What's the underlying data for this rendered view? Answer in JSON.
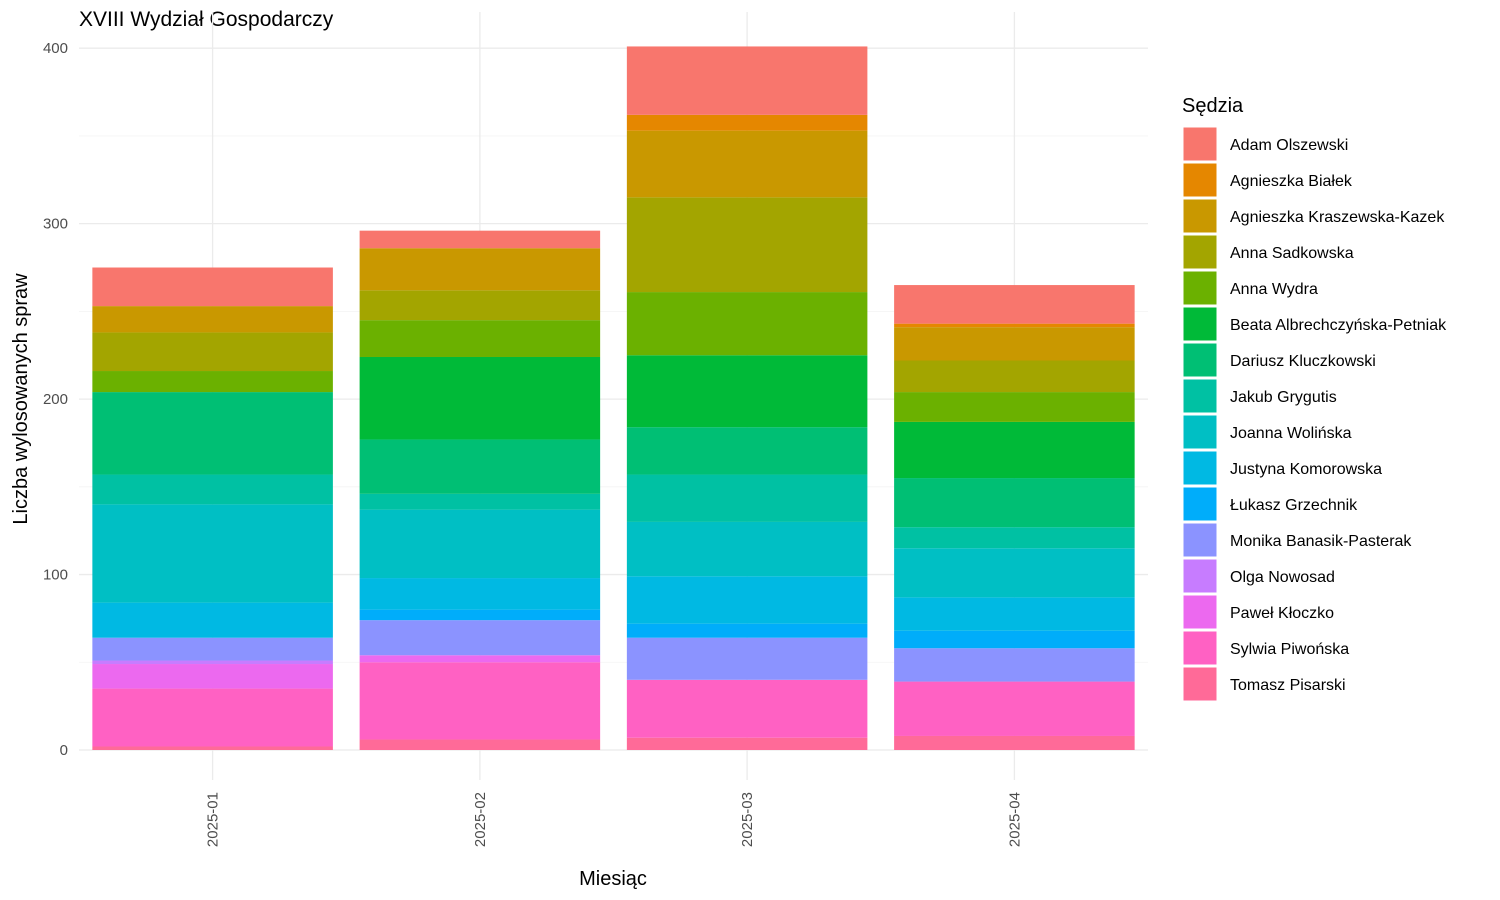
{
  "chart_data": {
    "type": "bar",
    "stacked": true,
    "title": "XVIII Wydział Gospodarczy",
    "xlabel": "Miesiąc",
    "ylabel": "Liczba wylosowanych spraw",
    "categories": [
      "2025-01",
      "2025-02",
      "2025-03",
      "2025-04"
    ],
    "ylim": [
      0,
      410
    ],
    "yticks": [
      0,
      100,
      200,
      300,
      400
    ],
    "grid": true,
    "legend": {
      "title": "Sędzia",
      "position": "right"
    },
    "series": [
      {
        "name": "Adam Olszewski",
        "color": "#F8766D",
        "values": [
          22,
          10,
          39,
          22
        ]
      },
      {
        "name": "Agnieszka Białek",
        "color": "#E58700",
        "values": [
          0,
          0,
          9,
          2
        ]
      },
      {
        "name": "Agnieszka Kraszewska-Kazek",
        "color": "#C99800",
        "values": [
          15,
          24,
          38,
          19
        ]
      },
      {
        "name": "Anna Sadkowska",
        "color": "#A3A500",
        "values": [
          22,
          17,
          54,
          18
        ]
      },
      {
        "name": "Anna Wydra",
        "color": "#6BB100",
        "values": [
          12,
          21,
          36,
          17
        ]
      },
      {
        "name": "Beata Albrechczyńska-Petniak",
        "color": "#00BA38",
        "values": [
          0,
          47,
          41,
          32
        ]
      },
      {
        "name": "Dariusz Kluczkowski",
        "color": "#00BF74",
        "values": [
          47,
          31,
          27,
          28
        ]
      },
      {
        "name": "Jakub Grygutis",
        "color": "#00C1A3",
        "values": [
          17,
          9,
          27,
          12
        ]
      },
      {
        "name": "Joanna Wolińska",
        "color": "#00BFC4",
        "values": [
          56,
          39,
          31,
          28
        ]
      },
      {
        "name": "Justyna Komorowska",
        "color": "#00B9E3",
        "values": [
          20,
          18,
          27,
          19
        ]
      },
      {
        "name": "Łukasz Grzechnik",
        "color": "#00ADFA",
        "values": [
          0,
          6,
          8,
          10
        ]
      },
      {
        "name": "Monika Banasik-Pasterak",
        "color": "#8B93FF",
        "values": [
          13,
          20,
          24,
          19
        ]
      },
      {
        "name": "Olga Nowosad",
        "color": "#C77CFF",
        "values": [
          2,
          0,
          0,
          0
        ]
      },
      {
        "name": "Paweł Kłoczko",
        "color": "#EC69EF",
        "values": [
          14,
          4,
          0,
          0
        ]
      },
      {
        "name": "Sylwia Piwońska",
        "color": "#FF61C3",
        "values": [
          33,
          44,
          33,
          31
        ]
      },
      {
        "name": "Tomasz Pisarski",
        "color": "#FF6A98",
        "values": [
          2,
          6,
          7,
          8
        ]
      }
    ]
  }
}
